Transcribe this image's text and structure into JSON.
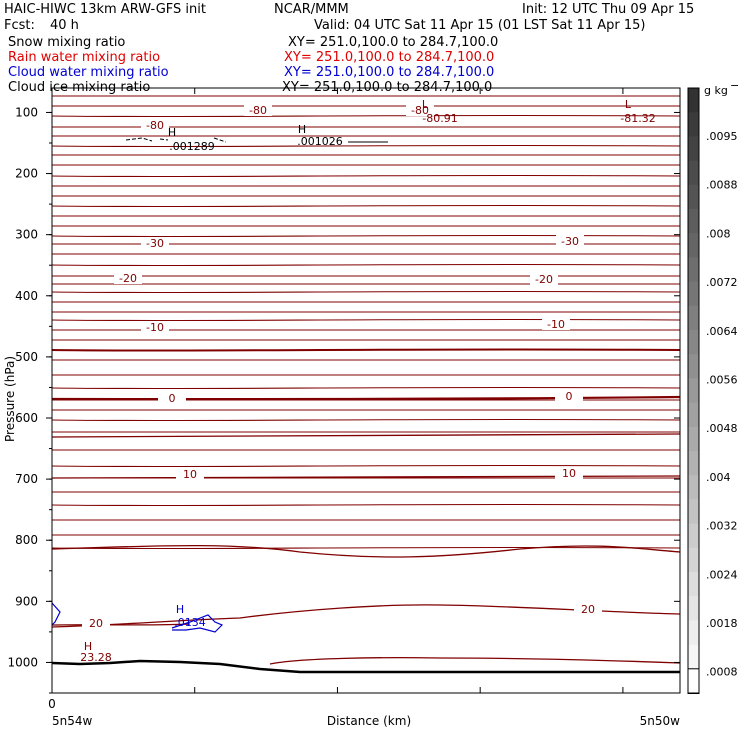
{
  "header": {
    "title": "HAIC-HIWC 13km ARW-GFS init",
    "org": "NCAR/MMM",
    "init": "Init: 12 UTC Thu 09 Apr 15",
    "fcst_label": "Fcst:",
    "fcst_value": "40 h",
    "valid": "Valid: 04 UTC Sat 11 Apr 15 (01 LST Sat 11 Apr 15)"
  },
  "fields": [
    {
      "name": "Snow mixing ratio",
      "xy": "XY= 251.0,100.0 to 284.7,100.0",
      "color": "#000000"
    },
    {
      "name": "Rain water mixing ratio",
      "xy": "XY= 251.0,100.0 to 284.7,100.0",
      "color": "#e00000"
    },
    {
      "name": "Cloud water mixing ratio",
      "xy": "XY= 251.0,100.0 to 284.7,100.0",
      "color": "#0000d0"
    },
    {
      "name": "Cloud ice mixing ratio",
      "xy": "XY= 251.0,100.0 to 284.7,100.0",
      "color": "#000000"
    }
  ],
  "chart_data": {
    "type": "contour",
    "xlabel": "Distance (km)",
    "ylabel": "Pressure (hPa)",
    "x_ticks": [
      "0"
    ],
    "x_endpoint_labels": [
      "5n54w",
      "5n50w"
    ],
    "y_ticks": [
      100,
      200,
      300,
      400,
      500,
      600,
      700,
      800,
      900,
      1000
    ],
    "ylim": [
      1050,
      60
    ],
    "temperature_contour_color": "#800000",
    "temperature_labels": [
      "-80",
      "-80",
      "-80",
      "-30",
      "-30",
      "-20",
      "-20",
      "-10",
      "-10",
      "0",
      "0",
      "10",
      "10",
      "20",
      "20"
    ],
    "extrema": [
      {
        "type": "L",
        "value": "-80.91",
        "color": "#800000"
      },
      {
        "type": "L",
        "value": "-81.32",
        "color": "#800000"
      },
      {
        "type": "H",
        "value": "23.28",
        "color": "#800000"
      },
      {
        "type": "H",
        "value": ".001289",
        "color": "#000000"
      },
      {
        "type": "H",
        "value": ".001026",
        "color": "#000000"
      },
      {
        "type": "H",
        "value": ".0134",
        "color": "#0000d0"
      }
    ],
    "colorbar": {
      "unit": "g kg",
      "unit_exponent": "−1",
      "labels": [
        ".0095",
        ".0088",
        ".008",
        ".0072",
        ".0064",
        ".0056",
        ".0048",
        ".004",
        ".0032",
        ".0024",
        ".0018",
        ".0008"
      ]
    }
  }
}
